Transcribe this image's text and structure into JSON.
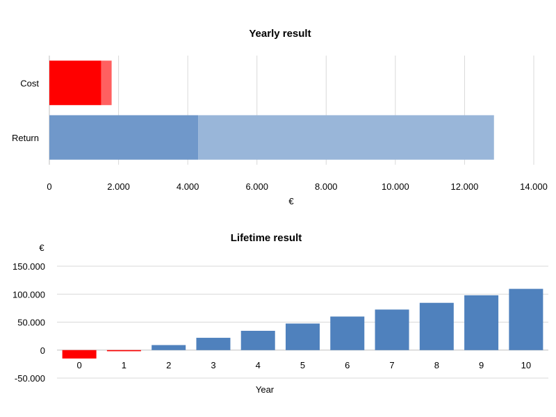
{
  "chart_data": [
    {
      "type": "bar",
      "orientation": "horizontal",
      "stacked": true,
      "title": "Yearly result",
      "xlabel": "€",
      "ylabel": "",
      "categories": [
        "Cost",
        "Return"
      ],
      "series": [
        {
          "values": [
            1500,
            4300
          ],
          "colors": [
            "#ff0000",
            "#7098ca"
          ]
        },
        {
          "values": [
            300,
            8550
          ],
          "colors": [
            "#ff6060",
            "#99b6d9"
          ]
        }
      ],
      "xlim": [
        0,
        14000
      ],
      "x_ticks": [
        "0",
        "2.000",
        "4.000",
        "6.000",
        "8.000",
        "10.000",
        "12.000",
        "14.000"
      ],
      "grid": true,
      "legend": "none"
    },
    {
      "type": "bar",
      "title": "Lifetime result",
      "xlabel": "Year",
      "ylabel": "€",
      "categories": [
        "0",
        "1",
        "2",
        "3",
        "4",
        "5",
        "6",
        "7",
        "8",
        "9",
        "10"
      ],
      "values": [
        -15000,
        -2000,
        9000,
        22000,
        34500,
        47500,
        60000,
        72500,
        84500,
        98000,
        109500
      ],
      "colors": {
        "positive": "#4f81bd",
        "negative": "#ff0000"
      },
      "ylim": [
        -50000,
        150000
      ],
      "y_ticks": [
        "-50.000",
        "0",
        "50.000",
        "100.000",
        "150.000"
      ],
      "grid": true,
      "legend": "none"
    }
  ]
}
